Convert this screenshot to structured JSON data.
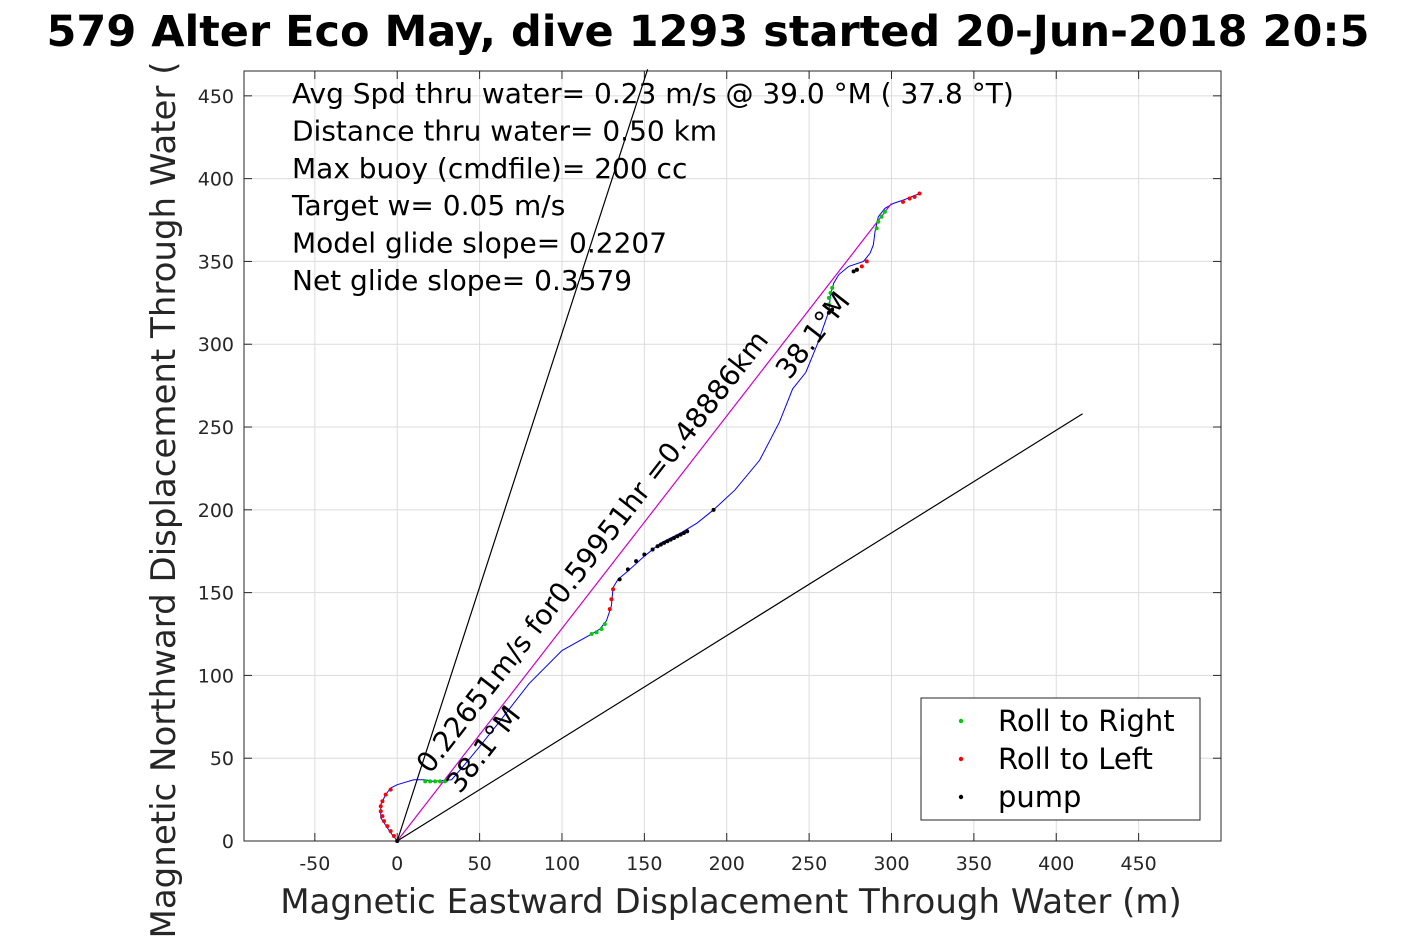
{
  "chart_data": {
    "type": "scatter",
    "title": "579 Alter Eco May, dive 1293 started 20-Jun-2018 20:5",
    "xlabel": "Magnetic Eastward Displacement Through Water (m)",
    "ylabel": "Magnetic Northward Displacement Through Water (",
    "xlim": [
      -93,
      500
    ],
    "ylim": [
      0,
      465
    ],
    "xticks": [
      -50,
      0,
      50,
      100,
      150,
      200,
      250,
      300,
      350,
      400,
      450
    ],
    "yticks": [
      0,
      50,
      100,
      150,
      200,
      250,
      300,
      350,
      400,
      450
    ],
    "grid": true,
    "legend_position": "bottom-right",
    "annotations": [
      "Avg Spd thru water=  0.23 m/s @  39.0 °M ( 37.8 °T)",
      "Distance thru water=  0.50 km",
      "Max buoy (cmdfile)= 200 cc",
      "Target w= 0.05 m/s",
      "Model glide slope= 0.2207",
      "Net glide slope= 0.3579"
    ],
    "track_labels": [
      {
        "text": "0.22651m/s for0.59951hr =0.48886km",
        "x": 20,
        "y": 40,
        "angle": 52
      },
      {
        "text": "38.1°M",
        "x": 38,
        "y": 28,
        "angle": 52
      },
      {
        "text": "38.1°M",
        "x": 238,
        "y": 278,
        "angle": 52
      }
    ],
    "series": [
      {
        "name": "Track",
        "kind": "line",
        "color": "#0000ff",
        "x": [
          0,
          -4,
          -10,
          -10,
          -7,
          -4,
          0,
          10,
          17,
          22,
          33,
          40,
          50,
          62,
          80,
          100,
          118,
          123,
          127,
          130,
          131,
          134,
          140,
          150,
          160,
          172,
          182,
          192,
          205,
          220,
          232,
          240,
          248,
          255,
          262,
          263,
          265,
          268,
          274,
          283,
          287,
          289,
          290,
          292,
          296,
          301,
          307,
          312,
          317
        ],
        "y": [
          0,
          5,
          14,
          22,
          28,
          32,
          34,
          37,
          37,
          36,
          37,
          45,
          57,
          72,
          95,
          115,
          125,
          128,
          133,
          142,
          153,
          158,
          163,
          172,
          180,
          186,
          192,
          200,
          212,
          230,
          253,
          273,
          283,
          300,
          320,
          330,
          337,
          342,
          347,
          350,
          355,
          360,
          368,
          377,
          382,
          385,
          387,
          389,
          391
        ]
      },
      {
        "name": "Straight track",
        "kind": "line",
        "color": "#cc00cc",
        "x": [
          0,
          300
        ],
        "y": [
          0,
          385
        ]
      },
      {
        "name": "Glide bound",
        "kind": "line",
        "color": "#000000",
        "x": [
          0,
          152
        ],
        "y": [
          0,
          466
        ]
      },
      {
        "name": "Glide bound",
        "kind": "line",
        "color": "#000000",
        "x": [
          0,
          416
        ],
        "y": [
          0,
          258
        ]
      },
      {
        "name": "Roll to Right",
        "kind": "points",
        "color": "#00cc00",
        "x": [
          17,
          20,
          23,
          26,
          29,
          118,
          121,
          124,
          126,
          262,
          262,
          263,
          264,
          291,
          292,
          294,
          296
        ],
        "y": [
          36,
          36,
          36,
          36,
          36,
          125,
          126,
          128,
          131,
          324,
          328,
          331,
          334,
          370,
          374,
          377,
          380
        ]
      },
      {
        "name": "Roll to Left",
        "kind": "points",
        "color": "#ff0000",
        "x": [
          0,
          -2,
          -4,
          -6,
          -8,
          -9,
          -10,
          -10,
          -9,
          -7,
          -4,
          129,
          130,
          131,
          279,
          282,
          285,
          307,
          311,
          314,
          317
        ],
        "y": [
          0,
          3,
          6,
          9,
          12,
          15,
          18,
          21,
          24,
          28,
          31,
          140,
          146,
          152,
          345,
          347,
          350,
          386,
          388,
          389,
          391
        ]
      },
      {
        "name": "pump",
        "kind": "points",
        "color": "#000000",
        "x": [
          0,
          135,
          140,
          145,
          150,
          155,
          158,
          160,
          162,
          164,
          166,
          168,
          170,
          172,
          174,
          176,
          192,
          262,
          264,
          277,
          279
        ],
        "y": [
          0,
          158,
          164,
          169,
          173,
          176,
          178,
          179,
          180,
          181,
          182,
          183,
          184,
          185,
          186,
          187,
          200,
          319,
          321,
          344,
          345
        ]
      }
    ],
    "legend": [
      {
        "label": "Roll to Right",
        "color": "#00cc00"
      },
      {
        "label": "Roll to Left",
        "color": "#ff0000"
      },
      {
        "label": "pump",
        "color": "#000000"
      }
    ]
  }
}
